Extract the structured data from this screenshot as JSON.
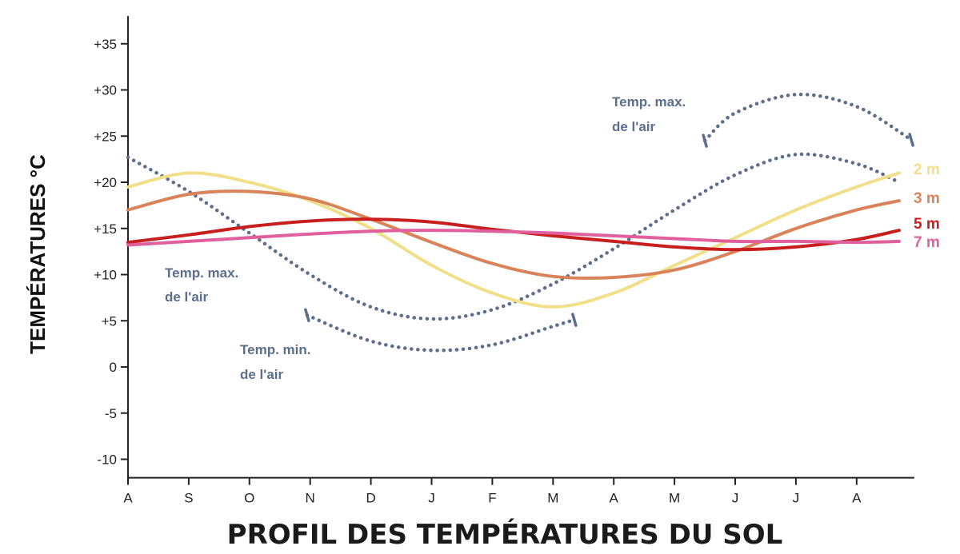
{
  "chart_data": {
    "type": "line",
    "title": "PROFIL DES TEMPÉRATURES DU SOL",
    "ylabel": "TEMPÉRATURES °C",
    "xlabel": "",
    "ylim": [
      -12,
      38
    ],
    "y_ticks": [
      {
        "v": 35,
        "label": "+35"
      },
      {
        "v": 30,
        "label": "+30"
      },
      {
        "v": 25,
        "label": "+25"
      },
      {
        "v": 20,
        "label": "+20"
      },
      {
        "v": 15,
        "label": "+15"
      },
      {
        "v": 10,
        "label": "+10"
      },
      {
        "v": 5,
        "label": "+5"
      },
      {
        "v": 0,
        "label": "0"
      },
      {
        "v": -5,
        "label": "-5"
      },
      {
        "v": -10,
        "label": "-10"
      }
    ],
    "categories": [
      "A",
      "S",
      "O",
      "N",
      "D",
      "J",
      "F",
      "M",
      "A",
      "M",
      "J",
      "J",
      "A"
    ],
    "series": [
      {
        "name": "2 m",
        "color": "#f2df8a",
        "style": "solid",
        "x": [
          0,
          1,
          2,
          3,
          4,
          5,
          6,
          7,
          8,
          9,
          10,
          11,
          12,
          12.7
        ],
        "values": [
          19.5,
          21,
          20,
          18,
          15,
          11,
          8,
          6.5,
          8,
          11,
          14,
          17,
          19.5,
          21
        ]
      },
      {
        "name": "3 m",
        "color": "#d9835a",
        "style": "solid",
        "x": [
          0,
          1,
          2,
          3,
          4,
          5,
          6,
          7,
          8,
          9,
          10,
          11,
          12,
          12.7
        ],
        "values": [
          17,
          18.7,
          19,
          18.2,
          16,
          13.5,
          11.2,
          9.8,
          9.7,
          10.5,
          12.5,
          15,
          17,
          18
        ]
      },
      {
        "name": "5 m",
        "color": "#c81e1e",
        "style": "solid",
        "x": [
          0,
          1,
          2,
          3,
          4,
          5,
          6,
          7,
          8,
          9,
          10,
          11,
          12,
          12.7
        ],
        "values": [
          13.5,
          14.3,
          15.2,
          15.8,
          16,
          15.7,
          14.9,
          14.2,
          13.6,
          13,
          12.7,
          13,
          13.8,
          14.8
        ]
      },
      {
        "name": "7 m",
        "color": "#e0609e",
        "style": "solid",
        "x": [
          0,
          1,
          2,
          3,
          4,
          5,
          6,
          7,
          8,
          9,
          10,
          11,
          12,
          12.7
        ],
        "values": [
          13.2,
          13.6,
          14,
          14.4,
          14.7,
          14.8,
          14.7,
          14.5,
          14.2,
          13.9,
          13.6,
          13.6,
          13.5,
          13.6
        ]
      },
      {
        "name": "",
        "color": "#5c6e8c",
        "style": "dotted",
        "x": [
          0,
          1,
          2,
          3,
          4,
          5,
          6,
          7,
          8,
          9,
          10,
          11,
          12,
          12.7
        ],
        "values": [
          22.7,
          19,
          14.5,
          10,
          6.5,
          5.2,
          6.2,
          9,
          12.8,
          17,
          20.8,
          23,
          22,
          20
        ]
      },
      {
        "name": "",
        "color": "#5c6e8c",
        "style": "dotted",
        "x": [
          2.95,
          4,
          5,
          6,
          7,
          7.35
        ],
        "values": [
          5.6,
          2.8,
          1.8,
          2.4,
          4.4,
          5.1
        ]
      },
      {
        "name": "",
        "color": "#5c6e8c",
        "style": "dotted",
        "x": [
          9.5,
          10,
          11,
          12,
          12.9
        ],
        "values": [
          24.5,
          27.5,
          29.5,
          28.2,
          24.6
        ]
      }
    ],
    "series_labels": [
      {
        "text": "2 m",
        "color": "#f2df8a"
      },
      {
        "text": "3 m",
        "color": "#d9835a"
      },
      {
        "text": "5 m",
        "color": "#c81e1e"
      },
      {
        "text": "7 m",
        "color": "#e0609e"
      }
    ],
    "annotations": [
      {
        "line1": "Temp. max.",
        "line2": "de l'air",
        "color": "#5c6e8c"
      },
      {
        "line1": "Temp. min.",
        "line2": "de l'air",
        "color": "#5c6e8c"
      },
      {
        "line1": "Temp. max.",
        "line2": "de l'air",
        "color": "#5c6e8c"
      }
    ],
    "grid": false,
    "legend": "right (inline labels)"
  }
}
